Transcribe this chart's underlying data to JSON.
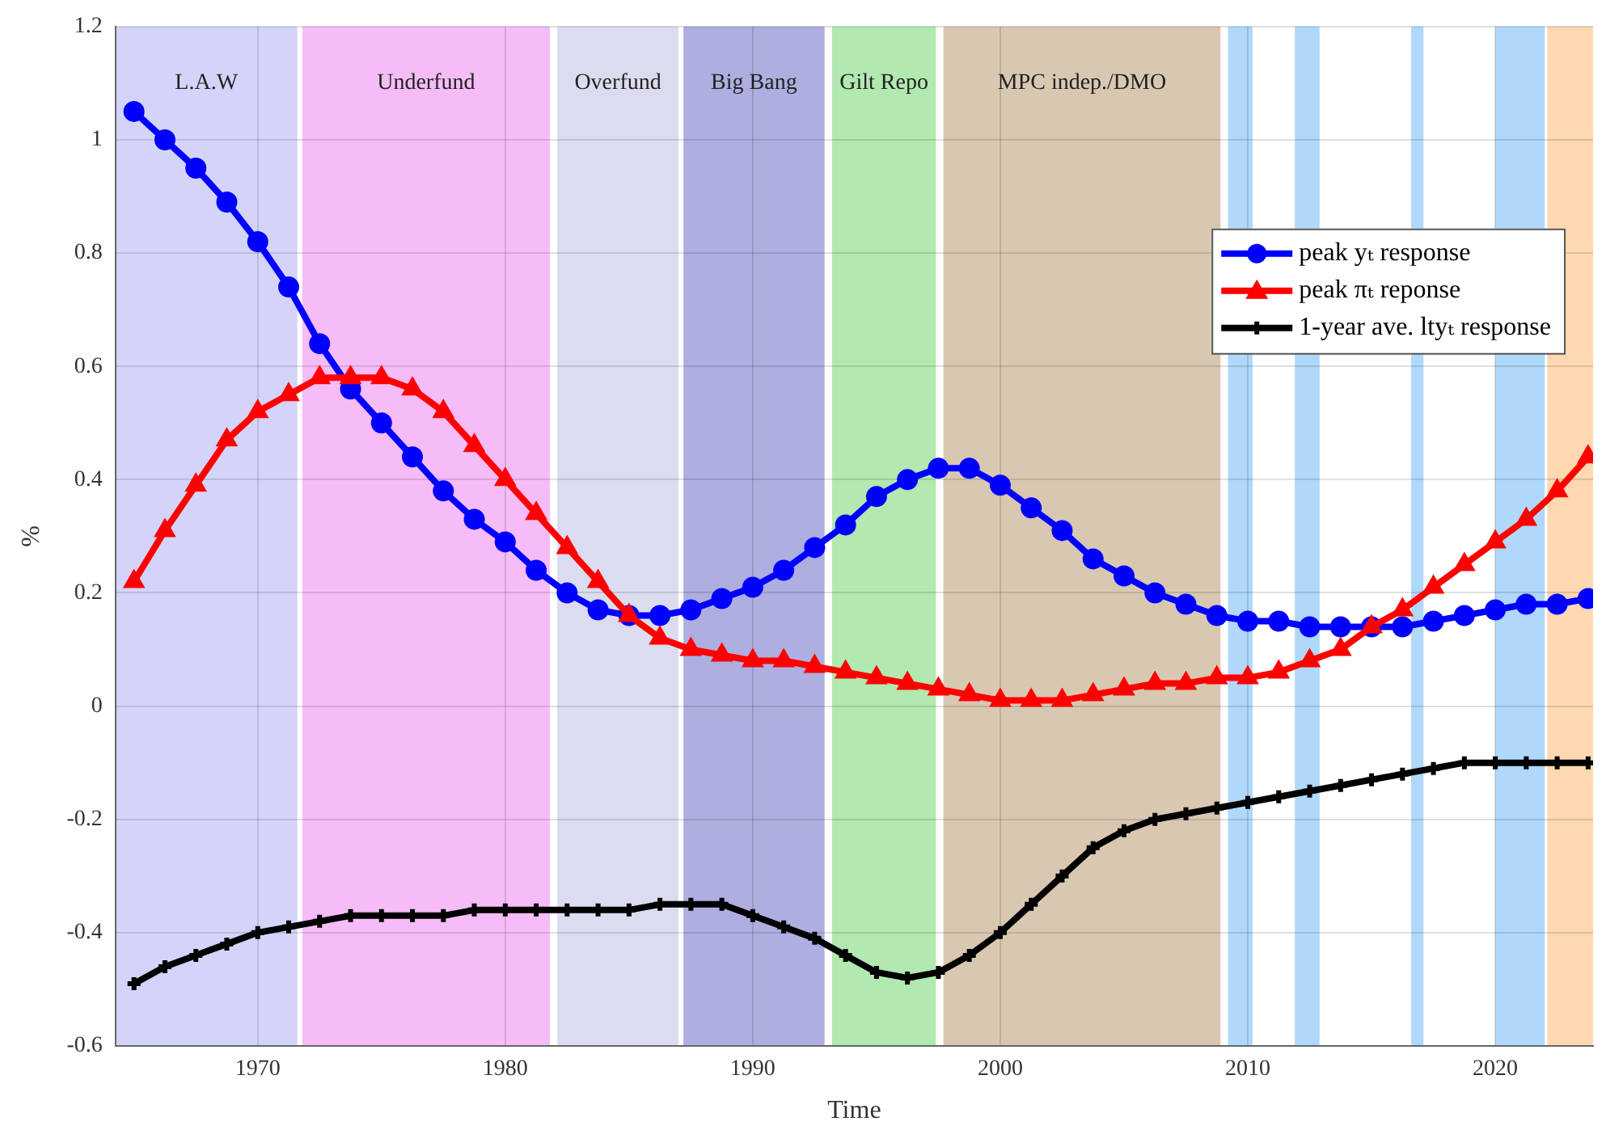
{
  "chart_data": {
    "type": "line",
    "xlabel": "Time",
    "ylabel": "%",
    "x": [
      1965,
      1966.25,
      1967.5,
      1968.75,
      1970,
      1971.25,
      1972.5,
      1973.75,
      1975,
      1976.25,
      1977.5,
      1978.75,
      1980,
      1981.25,
      1982.5,
      1983.75,
      1985,
      1986.25,
      1987.5,
      1988.75,
      1990,
      1991.25,
      1992.5,
      1993.75,
      1995,
      1996.25,
      1997.5,
      1998.75,
      2000,
      2001.25,
      2002.5,
      2003.75,
      2005,
      2006.25,
      2007.5,
      2008.75,
      2010,
      2011.25,
      2012.5,
      2013.75,
      2015,
      2016.25,
      2017.5,
      2018.75,
      2020,
      2021.25,
      2022.5,
      2023.75
    ],
    "series": [
      {
        "name": "peak yₜ response",
        "color": "#0000ff",
        "marker": "circle",
        "values": [
          1.05,
          1.0,
          0.95,
          0.89,
          0.82,
          0.74,
          0.64,
          0.56,
          0.5,
          0.44,
          0.38,
          0.33,
          0.29,
          0.24,
          0.2,
          0.17,
          0.16,
          0.16,
          0.17,
          0.19,
          0.21,
          0.24,
          0.28,
          0.32,
          0.37,
          0.4,
          0.42,
          0.42,
          0.39,
          0.35,
          0.31,
          0.26,
          0.23,
          0.2,
          0.18,
          0.16,
          0.15,
          0.15,
          0.14,
          0.14,
          0.14,
          0.14,
          0.15,
          0.16,
          0.17,
          0.18,
          0.18,
          0.19
        ]
      },
      {
        "name": "peak πₜ reponse",
        "color": "#ff0000",
        "marker": "triangle",
        "values": [
          0.22,
          0.31,
          0.39,
          0.47,
          0.52,
          0.55,
          0.58,
          0.58,
          0.58,
          0.56,
          0.52,
          0.46,
          0.4,
          0.34,
          0.28,
          0.22,
          0.16,
          0.12,
          0.1,
          0.09,
          0.08,
          0.08,
          0.07,
          0.06,
          0.05,
          0.04,
          0.03,
          0.02,
          0.01,
          0.01,
          0.01,
          0.02,
          0.03,
          0.04,
          0.04,
          0.05,
          0.05,
          0.06,
          0.08,
          0.1,
          0.14,
          0.17,
          0.21,
          0.25,
          0.29,
          0.33,
          0.38,
          0.44
        ]
      },
      {
        "name": "1-year ave. ltyₜ response",
        "color": "#000000",
        "marker": "cross",
        "values": [
          -0.49,
          -0.46,
          -0.44,
          -0.42,
          -0.4,
          -0.39,
          -0.38,
          -0.37,
          -0.37,
          -0.37,
          -0.37,
          -0.36,
          -0.36,
          -0.36,
          -0.36,
          -0.36,
          -0.36,
          -0.35,
          -0.35,
          -0.35,
          -0.37,
          -0.39,
          -0.41,
          -0.44,
          -0.47,
          -0.48,
          -0.47,
          -0.44,
          -0.4,
          -0.35,
          -0.3,
          -0.25,
          -0.22,
          -0.2,
          -0.19,
          -0.18,
          -0.17,
          -0.16,
          -0.15,
          -0.14,
          -0.13,
          -0.12,
          -0.11,
          -0.1,
          -0.1,
          -0.1,
          -0.1,
          -0.1
        ]
      }
    ],
    "xlim": [
      1964.25,
      2023.95
    ],
    "xticks": [
      1970,
      1980,
      1990,
      2000,
      2010,
      2020
    ],
    "ylim": [
      -0.6,
      1.2
    ],
    "yticks": [
      -0.6,
      -0.4,
      -0.2,
      0,
      0.2,
      0.4,
      0.6,
      0.8,
      1,
      1.2
    ],
    "bands": [
      {
        "axis": "x",
        "from": 1964.25,
        "to": 1971.6,
        "label": "L.A.W",
        "color": "#d4d4fa"
      },
      {
        "axis": "x",
        "from": 1971.8,
        "to": 1981.8,
        "label": "Underfund",
        "color": "#f5bcf7"
      },
      {
        "axis": "x",
        "from": 1982.1,
        "to": 1987,
        "label": "Overfund",
        "color": "#dcdcf0"
      },
      {
        "axis": "x",
        "from": 1987.2,
        "to": 1992.9,
        "label": "Big Bang",
        "color": "#aeaee0"
      },
      {
        "axis": "x",
        "from": 1993.2,
        "to": 1997.4,
        "label": "Gilt Repo",
        "color": "#b1e9b0"
      },
      {
        "axis": "x",
        "from": 1997.7,
        "to": 2008.9,
        "label": "MPC indep./DMO",
        "color": "#d8c8b2"
      },
      {
        "axis": "x",
        "from": 2009.2,
        "to": 2010.2,
        "color": "#b0d8fa"
      },
      {
        "axis": "x",
        "from": 2011.9,
        "to": 2012.9,
        "color": "#b0d8fa"
      },
      {
        "axis": "x",
        "from": 2016.6,
        "to": 2017.1,
        "color": "#b0d8fa"
      },
      {
        "axis": "x",
        "from": 2020,
        "to": 2022,
        "color": "#b0d8fa"
      },
      {
        "axis": "x",
        "from": 2022.1,
        "to": 2023.95,
        "color": "#fdd8b0"
      }
    ],
    "grid": true,
    "legend": "top right"
  }
}
